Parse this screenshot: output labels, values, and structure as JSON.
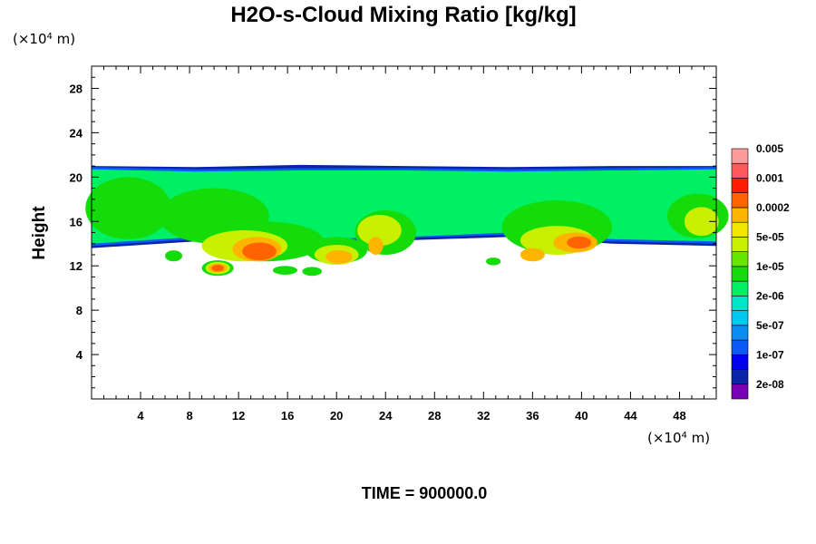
{
  "chart_data": {
    "type": "heatmap",
    "title": "H2O-s-Cloud Mixing Ratio [kg/kg]",
    "ylabel": "Height",
    "x_unit_label": {
      "prefix": "(×10",
      "exp": "4",
      "suffix": " m)"
    },
    "y_unit_label": {
      "prefix": "(×10",
      "exp": "4",
      "suffix": " m)"
    },
    "time_label": "TIME = 900000.0",
    "xlim": [
      0,
      51
    ],
    "ylim": [
      0,
      30
    ],
    "x_major_ticks": [
      4,
      8,
      12,
      16,
      20,
      24,
      28,
      32,
      36,
      40,
      44,
      48
    ],
    "x_tick_labels": [
      "4",
      "8",
      "12",
      "16",
      "20",
      "24",
      "28",
      "32",
      "36",
      "40",
      "44",
      "48"
    ],
    "y_major_ticks": [
      4,
      8,
      12,
      16,
      20,
      24,
      28
    ],
    "y_tick_labels": [
      "4",
      "8",
      "12",
      "16",
      "20",
      "24",
      "28"
    ],
    "colorbar": {
      "colors": [
        "#7a00b4",
        "#0a24a8",
        "#0000f0",
        "#0a5af5",
        "#0a8cf0",
        "#00c8f0",
        "#00e6c8",
        "#00f064",
        "#14dc0a",
        "#64e600",
        "#c8f000",
        "#f0e600",
        "#ffb400",
        "#ff6400",
        "#ff1e00",
        "#ff5a5a",
        "#ff9b9b"
      ],
      "labels": [
        "2e-08",
        "1e-07",
        "5e-07",
        "2e-06",
        "1e-05",
        "5e-05",
        "0.0002",
        "0.001",
        "0.005"
      ]
    },
    "regions": [
      {
        "level": 1,
        "kind": "band",
        "x": [
          0,
          51
        ],
        "top": [
          21.0,
          20.9,
          21.1,
          21.0,
          20.9,
          21.0,
          21.0
        ],
        "bottom": [
          13.6,
          14.2,
          14.0,
          14.3,
          14.6,
          14.0,
          13.8
        ]
      },
      {
        "level": 3,
        "kind": "band",
        "x": [
          0,
          51
        ],
        "top": [
          20.9,
          20.7,
          20.8,
          20.8,
          20.7,
          20.8,
          20.9
        ],
        "bottom": [
          13.8,
          14.4,
          14.2,
          14.5,
          14.8,
          14.2,
          14.0
        ]
      },
      {
        "level": 7,
        "kind": "band",
        "x": [
          0,
          51
        ],
        "top": [
          20.7,
          20.5,
          20.6,
          20.6,
          20.5,
          20.6,
          20.7
        ],
        "bottom": [
          14.0,
          14.6,
          14.4,
          14.6,
          15.0,
          14.4,
          14.2
        ]
      },
      {
        "level": 8,
        "kind": "blob",
        "x": 3.0,
        "y": 17.2,
        "rx": 3.5,
        "ry": 2.8
      },
      {
        "level": 8,
        "kind": "blob",
        "x": 10.0,
        "y": 16.5,
        "rx": 4.5,
        "ry": 2.5
      },
      {
        "level": 8,
        "kind": "blob",
        "x": 14.0,
        "y": 14.2,
        "rx": 5.0,
        "ry": 1.8
      },
      {
        "level": 8,
        "kind": "blob",
        "x": 20.0,
        "y": 13.4,
        "rx": 2.5,
        "ry": 1.2
      },
      {
        "level": 8,
        "kind": "blob",
        "x": 24.0,
        "y": 15.0,
        "rx": 2.5,
        "ry": 2.0
      },
      {
        "level": 8,
        "kind": "blob",
        "x": 38.0,
        "y": 15.5,
        "rx": 4.5,
        "ry": 2.4
      },
      {
        "level": 8,
        "kind": "blob",
        "x": 49.5,
        "y": 16.5,
        "rx": 2.5,
        "ry": 2.0
      },
      {
        "level": 8,
        "kind": "blob",
        "x": 6.7,
        "y": 12.9,
        "rx": 0.7,
        "ry": 0.5
      },
      {
        "level": 8,
        "kind": "blob",
        "x": 10.3,
        "y": 11.8,
        "rx": 1.3,
        "ry": 0.7
      },
      {
        "level": 8,
        "kind": "blob",
        "x": 15.8,
        "y": 11.6,
        "rx": 1.0,
        "ry": 0.4
      },
      {
        "level": 8,
        "kind": "blob",
        "x": 18.0,
        "y": 11.5,
        "rx": 0.8,
        "ry": 0.4
      },
      {
        "level": 8,
        "kind": "blob",
        "x": 32.8,
        "y": 12.4,
        "rx": 0.6,
        "ry": 0.35
      },
      {
        "level": 10,
        "kind": "blob",
        "x": 12.5,
        "y": 13.8,
        "rx": 3.5,
        "ry": 1.4
      },
      {
        "level": 10,
        "kind": "blob",
        "x": 20.0,
        "y": 13.0,
        "rx": 1.8,
        "ry": 0.9
      },
      {
        "level": 10,
        "kind": "blob",
        "x": 23.5,
        "y": 15.2,
        "rx": 1.8,
        "ry": 1.4
      },
      {
        "level": 10,
        "kind": "blob",
        "x": 38.0,
        "y": 14.3,
        "rx": 3.0,
        "ry": 1.3
      },
      {
        "level": 10,
        "kind": "blob",
        "x": 49.8,
        "y": 16.0,
        "rx": 1.4,
        "ry": 1.3
      },
      {
        "level": 10,
        "kind": "blob",
        "x": 10.3,
        "y": 11.8,
        "rx": 1.0,
        "ry": 0.55
      },
      {
        "level": 12,
        "kind": "blob",
        "x": 13.5,
        "y": 13.5,
        "rx": 2.0,
        "ry": 1.1
      },
      {
        "level": 12,
        "kind": "blob",
        "x": 20.2,
        "y": 12.8,
        "rx": 1.1,
        "ry": 0.6
      },
      {
        "level": 12,
        "kind": "blob",
        "x": 23.2,
        "y": 13.8,
        "rx": 0.6,
        "ry": 0.8
      },
      {
        "level": 12,
        "kind": "blob",
        "x": 39.5,
        "y": 14.1,
        "rx": 1.8,
        "ry": 0.9
      },
      {
        "level": 12,
        "kind": "blob",
        "x": 36.0,
        "y": 13.0,
        "rx": 1.0,
        "ry": 0.6
      },
      {
        "level": 12,
        "kind": "blob",
        "x": 10.3,
        "y": 11.8,
        "rx": 0.75,
        "ry": 0.4
      },
      {
        "level": 13,
        "kind": "blob",
        "x": 13.7,
        "y": 13.3,
        "rx": 1.4,
        "ry": 0.8
      },
      {
        "level": 13,
        "kind": "blob",
        "x": 39.8,
        "y": 14.1,
        "rx": 1.0,
        "ry": 0.55
      },
      {
        "level": 13,
        "kind": "blob",
        "x": 10.3,
        "y": 11.8,
        "rx": 0.5,
        "ry": 0.3
      }
    ]
  }
}
